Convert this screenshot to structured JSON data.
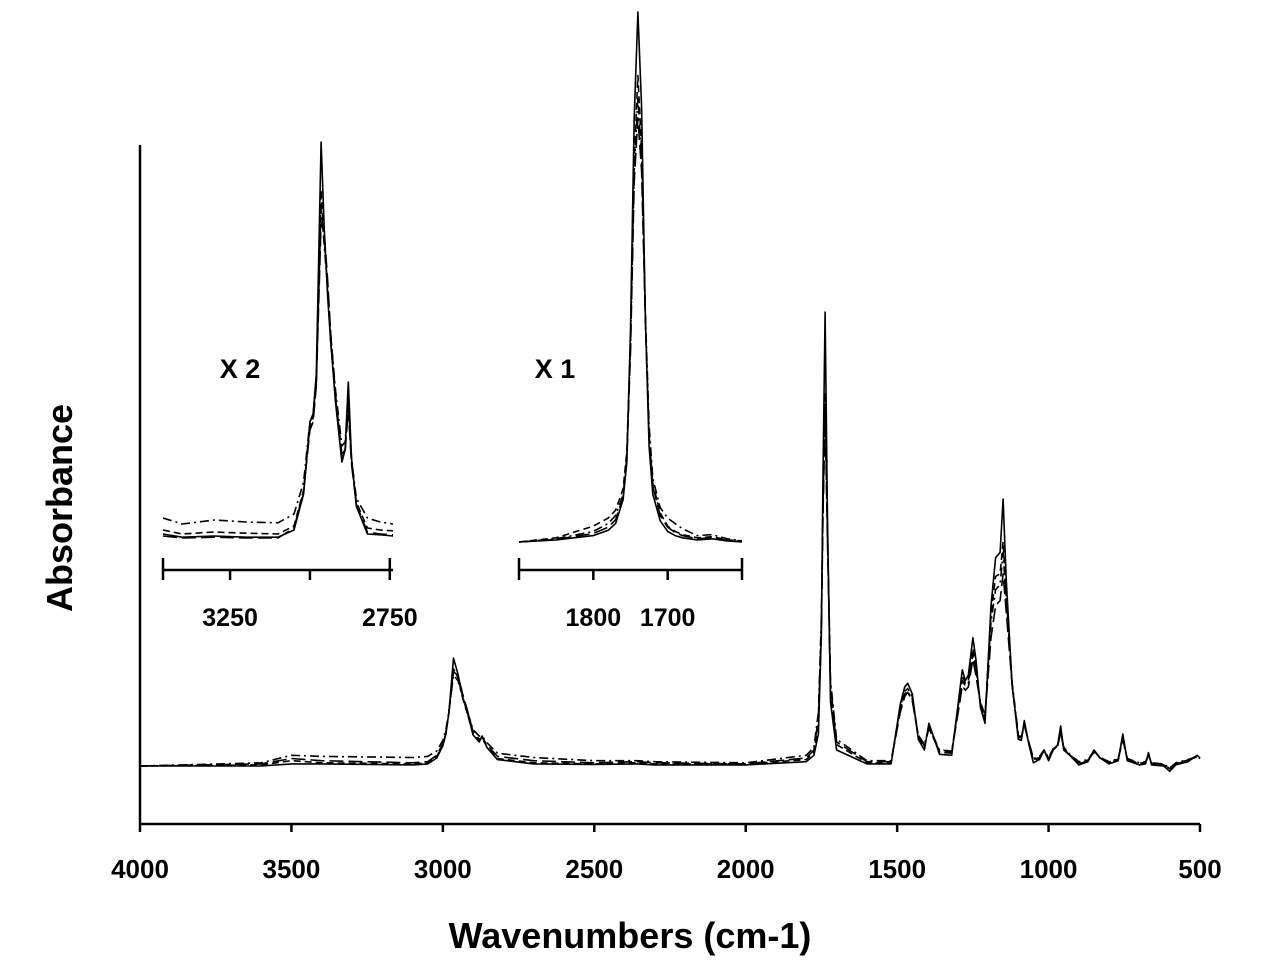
{
  "chart_data": {
    "type": "line",
    "xlabel": "Wavenumbers (cm-1)",
    "ylabel": "Absorbance",
    "x_reversed": true,
    "xlim": [
      4000,
      500
    ],
    "ylim": [
      0,
      1.0
    ],
    "x_ticks": [
      4000,
      3500,
      3000,
      2500,
      2000,
      1500,
      1000,
      500
    ],
    "y_ticks_shown": false,
    "grid": false,
    "legend": "none",
    "series_styles": [
      "solid",
      "dashed",
      "dash-dot",
      "long-dash"
    ],
    "main": {
      "x": [
        4000,
        3600,
        3500,
        3400,
        3100,
        3050,
        3020,
        3000,
        2990,
        2980,
        2965,
        2950,
        2935,
        2920,
        2900,
        2880,
        2870,
        2855,
        2820,
        2700,
        2500,
        2360,
        2300,
        2000,
        1800,
        1775,
        1760,
        1750,
        1745,
        1738,
        1730,
        1720,
        1700,
        1600,
        1520,
        1490,
        1475,
        1465,
        1450,
        1430,
        1410,
        1395,
        1380,
        1360,
        1320,
        1300,
        1285,
        1275,
        1265,
        1250,
        1240,
        1225,
        1210,
        1190,
        1175,
        1160,
        1150,
        1140,
        1120,
        1100,
        1090,
        1080,
        1065,
        1050,
        1030,
        1015,
        1000,
        985,
        970,
        960,
        950,
        930,
        900,
        870,
        850,
        830,
        800,
        770,
        755,
        740,
        720,
        700,
        680,
        670,
        660,
        620,
        600,
        580,
        540,
        510,
        500
      ],
      "series": [
        {
          "values": [
            0.0,
            0.0,
            0.004,
            0.004,
            0.002,
            0.004,
            0.015,
            0.038,
            0.06,
            0.1,
            0.202,
            0.172,
            0.13,
            0.102,
            0.058,
            0.045,
            0.056,
            0.035,
            0.012,
            0.004,
            0.003,
            0.004,
            0.002,
            0.002,
            0.008,
            0.02,
            0.06,
            0.25,
            0.53,
            0.85,
            0.46,
            0.12,
            0.03,
            0.004,
            0.004,
            0.115,
            0.148,
            0.155,
            0.135,
            0.05,
            0.03,
            0.08,
            0.055,
            0.022,
            0.02,
            0.11,
            0.18,
            0.16,
            0.17,
            0.24,
            0.2,
            0.11,
            0.08,
            0.3,
            0.39,
            0.4,
            0.5,
            0.35,
            0.15,
            0.05,
            0.048,
            0.085,
            0.04,
            0.006,
            0.012,
            0.03,
            0.01,
            0.03,
            0.04,
            0.075,
            0.03,
            0.02,
            0.002,
            0.008,
            0.03,
            0.015,
            0.004,
            0.01,
            0.06,
            0.01,
            0.006,
            0.002,
            0.004,
            0.025,
            0.002,
            0.0,
            -0.01,
            0.002,
            0.008,
            0.02,
            0.015
          ]
        },
        {
          "values": [
            0.0,
            0.002,
            0.01,
            0.006,
            0.004,
            0.006,
            0.018,
            0.04,
            0.062,
            0.1,
            0.182,
            0.165,
            0.128,
            0.1,
            0.06,
            0.048,
            0.052,
            0.036,
            0.014,
            0.006,
            0.004,
            0.006,
            0.004,
            0.004,
            0.012,
            0.025,
            0.08,
            0.27,
            0.48,
            0.7,
            0.43,
            0.14,
            0.04,
            0.006,
            0.006,
            0.11,
            0.14,
            0.145,
            0.13,
            0.055,
            0.035,
            0.075,
            0.052,
            0.026,
            0.024,
            0.105,
            0.17,
            0.155,
            0.16,
            0.22,
            0.185,
            0.115,
            0.09,
            0.285,
            0.355,
            0.36,
            0.42,
            0.32,
            0.15,
            0.055,
            0.05,
            0.08,
            0.042,
            0.01,
            0.015,
            0.03,
            0.012,
            0.03,
            0.038,
            0.068,
            0.032,
            0.02,
            0.004,
            0.01,
            0.028,
            0.015,
            0.006,
            0.012,
            0.055,
            0.012,
            0.008,
            0.004,
            0.006,
            0.022,
            0.004,
            0.002,
            -0.006,
            0.004,
            0.01,
            0.018,
            0.014
          ]
        },
        {
          "values": [
            0.0,
            0.006,
            0.02,
            0.018,
            0.016,
            0.018,
            0.028,
            0.048,
            0.068,
            0.102,
            0.17,
            0.16,
            0.13,
            0.104,
            0.068,
            0.056,
            0.056,
            0.044,
            0.024,
            0.016,
            0.01,
            0.01,
            0.008,
            0.006,
            0.02,
            0.035,
            0.1,
            0.28,
            0.47,
            0.68,
            0.44,
            0.16,
            0.05,
            0.01,
            0.01,
            0.105,
            0.135,
            0.14,
            0.125,
            0.058,
            0.04,
            0.072,
            0.055,
            0.03,
            0.028,
            0.1,
            0.16,
            0.15,
            0.155,
            0.21,
            0.178,
            0.12,
            0.095,
            0.27,
            0.33,
            0.34,
            0.4,
            0.31,
            0.155,
            0.06,
            0.054,
            0.078,
            0.045,
            0.014,
            0.018,
            0.03,
            0.016,
            0.032,
            0.04,
            0.065,
            0.035,
            0.022,
            0.008,
            0.012,
            0.028,
            0.016,
            0.008,
            0.014,
            0.052,
            0.014,
            0.01,
            0.006,
            0.008,
            0.02,
            0.006,
            0.004,
            -0.004,
            0.006,
            0.012,
            0.018,
            0.014
          ]
        },
        {
          "values": [
            0.0,
            0.004,
            0.014,
            0.01,
            0.006,
            0.008,
            0.02,
            0.042,
            0.064,
            0.1,
            0.176,
            0.17,
            0.136,
            0.106,
            0.064,
            0.05,
            0.054,
            0.04,
            0.018,
            0.01,
            0.006,
            0.008,
            0.006,
            0.004,
            0.015,
            0.03,
            0.09,
            0.26,
            0.46,
            0.66,
            0.42,
            0.15,
            0.045,
            0.008,
            0.008,
            0.1,
            0.13,
            0.138,
            0.122,
            0.056,
            0.038,
            0.07,
            0.052,
            0.028,
            0.026,
            0.095,
            0.15,
            0.142,
            0.148,
            0.2,
            0.17,
            0.118,
            0.092,
            0.24,
            0.3,
            0.31,
            0.36,
            0.29,
            0.15,
            0.058,
            0.052,
            0.076,
            0.044,
            0.012,
            0.016,
            0.028,
            0.014,
            0.03,
            0.038,
            0.062,
            0.034,
            0.021,
            0.006,
            0.011,
            0.026,
            0.015,
            0.007,
            0.013,
            0.05,
            0.013,
            0.009,
            0.005,
            0.007,
            0.02,
            0.005,
            0.003,
            -0.005,
            0.005,
            0.011,
            0.017,
            0.013
          ]
        }
      ]
    },
    "insets": [
      {
        "scale_label": "X 2",
        "xlim": [
          3460,
          2740
        ],
        "x_ticks": [
          3460,
          3250,
          3000,
          2750
        ],
        "x_tick_labels": [
          "",
          "3250",
          "",
          "2750"
        ],
        "x": [
          3460,
          3400,
          3300,
          3200,
          3100,
          3050,
          3020,
          3000,
          2990,
          2980,
          2965,
          2955,
          2945,
          2935,
          2920,
          2900,
          2890,
          2880,
          2870,
          2855,
          2820,
          2780,
          2740
        ],
        "series": [
          {
            "values": [
              0.02,
              0.012,
              0.015,
              0.012,
              0.012,
              0.03,
              0.12,
              0.3,
              0.32,
              0.42,
              1.0,
              0.78,
              0.62,
              0.5,
              0.35,
              0.2,
              0.23,
              0.4,
              0.21,
              0.09,
              0.02,
              0.018,
              0.015
            ]
          },
          {
            "values": [
              0.03,
              0.02,
              0.025,
              0.022,
              0.02,
              0.04,
              0.13,
              0.29,
              0.31,
              0.4,
              0.88,
              0.75,
              0.64,
              0.5,
              0.36,
              0.22,
              0.23,
              0.36,
              0.2,
              0.1,
              0.035,
              0.03,
              0.028
            ]
          },
          {
            "values": [
              0.06,
              0.045,
              0.055,
              0.05,
              0.048,
              0.07,
              0.15,
              0.3,
              0.32,
              0.4,
              0.84,
              0.74,
              0.64,
              0.52,
              0.38,
              0.24,
              0.25,
              0.35,
              0.21,
              0.11,
              0.06,
              0.05,
              0.045
            ]
          },
          {
            "values": [
              0.015,
              0.01,
              0.012,
              0.01,
              0.01,
              0.035,
              0.125,
              0.28,
              0.3,
              0.39,
              0.8,
              0.77,
              0.66,
              0.52,
              0.37,
              0.215,
              0.225,
              0.33,
              0.195,
              0.095,
              0.025,
              0.02,
              0.018
            ]
          }
        ]
      },
      {
        "scale_label": "X 1",
        "xlim": [
          1900,
          1600
        ],
        "x_ticks": [
          1900,
          1800,
          1700,
          1600
        ],
        "x_tick_labels": [
          "",
          "1800",
          "1700",
          ""
        ],
        "x": [
          1900,
          1850,
          1800,
          1780,
          1770,
          1760,
          1755,
          1750,
          1745,
          1740,
          1735,
          1730,
          1725,
          1720,
          1710,
          1700,
          1690,
          1680,
          1660,
          1640,
          1620,
          1600
        ],
        "series": [
          {
            "values": [
              0.0,
              0.004,
              0.012,
              0.022,
              0.035,
              0.08,
              0.15,
              0.4,
              0.8,
              1.0,
              0.82,
              0.42,
              0.18,
              0.09,
              0.04,
              0.02,
              0.012,
              0.008,
              0.004,
              0.006,
              0.002,
              0.0
            ]
          },
          {
            "values": [
              0.0,
              0.008,
              0.03,
              0.045,
              0.06,
              0.1,
              0.17,
              0.38,
              0.72,
              0.88,
              0.74,
              0.42,
              0.2,
              0.11,
              0.055,
              0.03,
              0.02,
              0.014,
              0.008,
              0.01,
              0.004,
              0.002
            ]
          },
          {
            "values": [
              0.0,
              0.006,
              0.02,
              0.035,
              0.05,
              0.09,
              0.16,
              0.37,
              0.7,
              0.84,
              0.72,
              0.43,
              0.22,
              0.12,
              0.065,
              0.045,
              0.035,
              0.025,
              0.012,
              0.014,
              0.006,
              0.002
            ]
          },
          {
            "values": [
              0.0,
              0.005,
              0.016,
              0.028,
              0.042,
              0.085,
              0.155,
              0.36,
              0.68,
              0.8,
              0.7,
              0.42,
              0.2,
              0.105,
              0.05,
              0.028,
              0.018,
              0.012,
              0.006,
              0.008,
              0.003,
              0.001
            ]
          }
        ]
      }
    ]
  }
}
